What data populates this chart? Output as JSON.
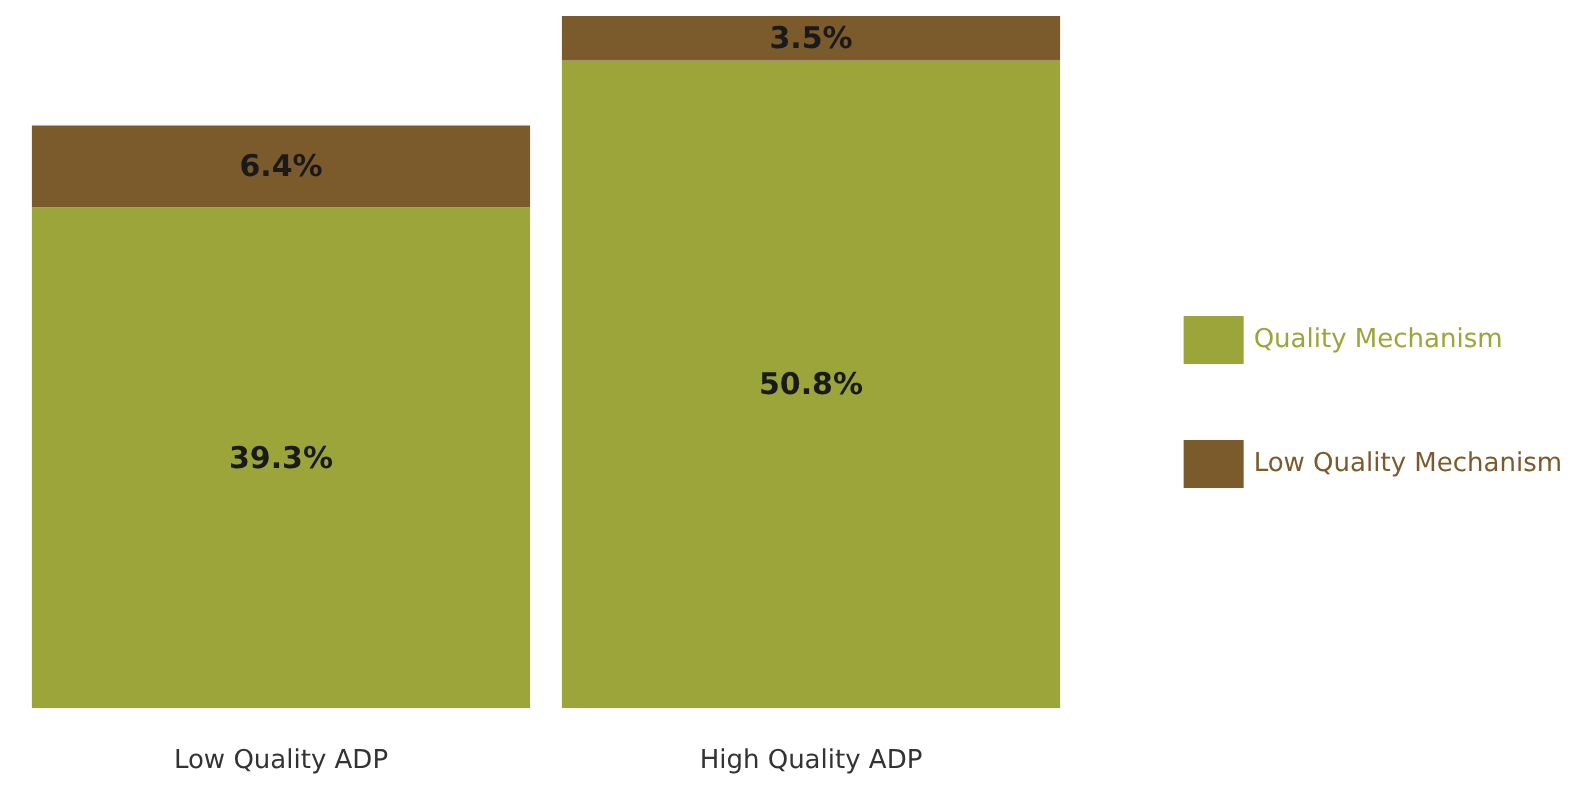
{
  "chart_data": {
    "type": "bar",
    "stacked": true,
    "legend": "right",
    "categories": [
      "Low Quality ADP",
      "High Quality ADP"
    ],
    "series": [
      {
        "name": "Quality Mechanism",
        "color": "#9ca53a",
        "values": [
          39.3,
          50.8
        ],
        "value_labels": [
          "39.3%",
          "50.8%"
        ]
      },
      {
        "name": "Low Quality Mechanism",
        "color": "#7b5a2c",
        "values": [
          6.4,
          3.5
        ],
        "value_labels": [
          "6.4%",
          "3.5%"
        ]
      }
    ]
  }
}
